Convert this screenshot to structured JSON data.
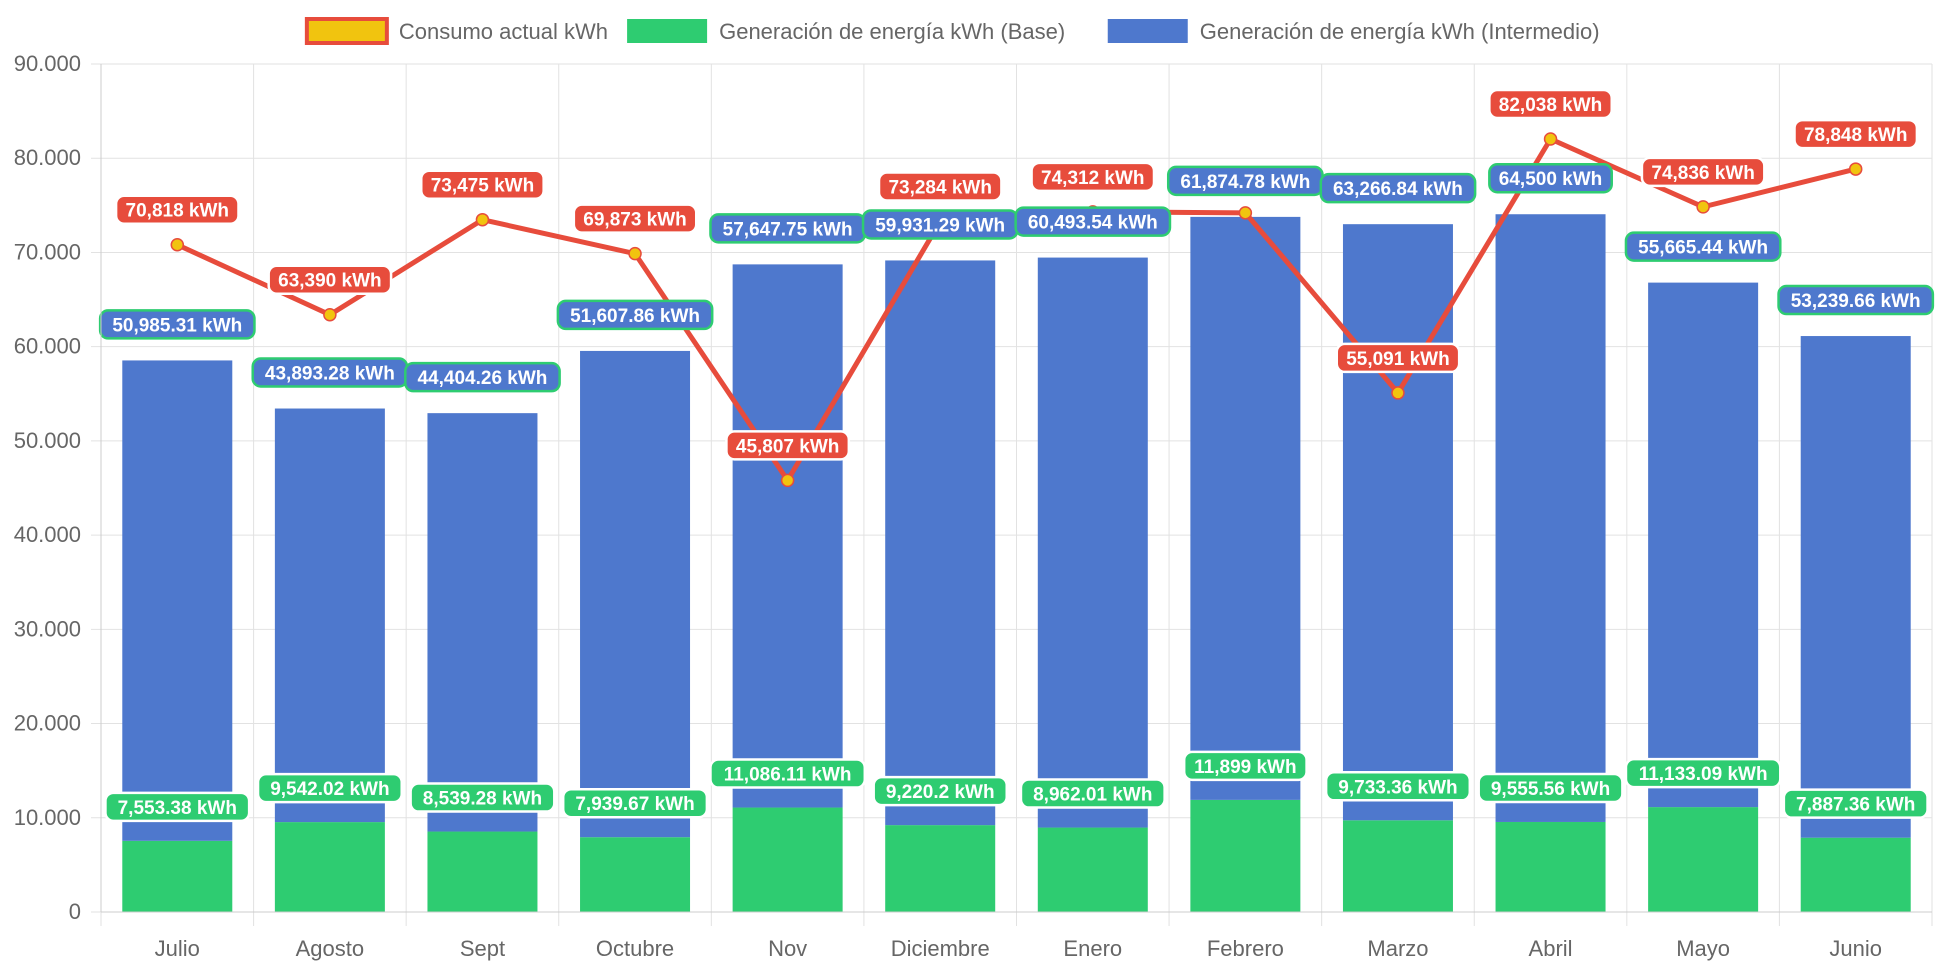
{
  "chart_data": {
    "type": "bar",
    "categories": [
      "Julio",
      "Agosto",
      "Sept",
      "Octubre",
      "Nov",
      "Diciembre",
      "Enero",
      "Febrero",
      "Marzo",
      "Abril",
      "Mayo",
      "Junio"
    ],
    "ylim": [
      0,
      90000
    ],
    "yticks": [
      "0",
      "10.000",
      "20.000",
      "30.000",
      "40.000",
      "50.000",
      "60.000",
      "70.000",
      "80.000",
      "90.000"
    ],
    "grid": true,
    "legend_position": "top",
    "series": [
      {
        "name": "Consumo actual kWh",
        "kind": "line",
        "color": "#e74c3c",
        "point_color": "#f1c40f",
        "values": [
          70818,
          63390,
          73475,
          69873,
          45807,
          73284,
          74312,
          74203,
          55091,
          82038,
          74836,
          78848
        ],
        "labels": [
          "70,818 kWh",
          "63,390 kWh",
          "73,475 kWh",
          "69,873 kWh",
          "45,807 kWh",
          "73,284 kWh",
          "74,312 kWh",
          "",
          "55,091 kWh",
          "82,038 kWh",
          "74,836 kWh",
          "78,848 kWh"
        ]
      },
      {
        "name": "Generación de energía kWh (Base)",
        "kind": "bar",
        "color": "#2ecc71",
        "values": [
          7553.38,
          9542.02,
          8539.28,
          7939.67,
          11086.11,
          9220.2,
          8962.01,
          11899,
          9733.36,
          9555.56,
          11133.09,
          7887.36
        ],
        "labels": [
          "7,553.38 kWh",
          "9,542.02 kWh",
          "8,539.28 kWh",
          "7,939.67 kWh",
          "11,086.11 kWh",
          "9,220.2 kWh",
          "8,962.01 kWh",
          "11,899 kWh",
          "9,733.36 kWh",
          "9,555.56 kWh",
          "11,133.09 kWh",
          "7,887.36 kWh"
        ]
      },
      {
        "name": "Generación de energía kWh (Intermedio)",
        "kind": "bar",
        "color": "#4e78cd",
        "values": [
          50985.31,
          43893.28,
          44404.26,
          51607.86,
          57647.75,
          59931.29,
          60493.54,
          61874.78,
          63266.84,
          64500,
          55665.44,
          53239.66
        ],
        "labels": [
          "50,985.31 kWh",
          "43,893.28 kWh",
          "44,404.26 kWh",
          "51,607.86 kWh",
          "57,647.75 kWh",
          "59,931.29 kWh",
          "60,493.54 kWh",
          "61,874.78 kWh",
          "63,266.84 kWh",
          "64,500 kWh",
          "55,665.44 kWh",
          "53,239.66 kWh"
        ]
      }
    ]
  }
}
